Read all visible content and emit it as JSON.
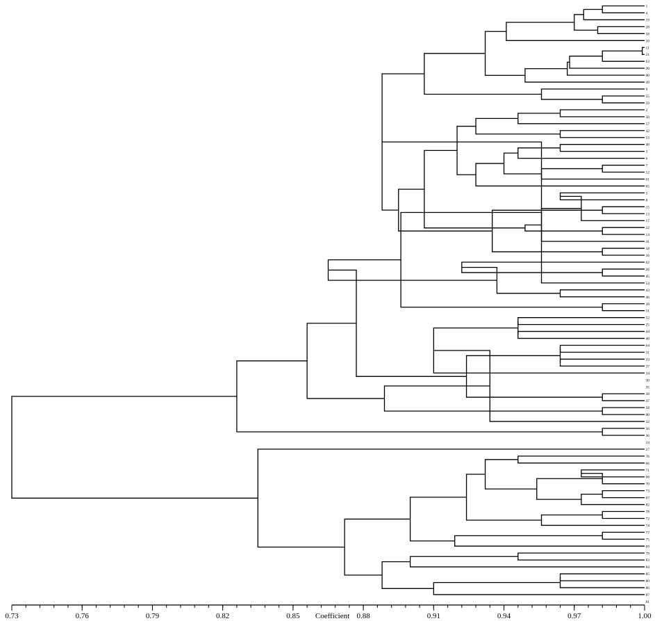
{
  "chart_data": {
    "type": "dendrogram",
    "orientation": "horizontal",
    "xlabel": "Coefficient",
    "xlim": [
      0.73,
      1.0
    ],
    "xticks": [
      "0.73",
      "0.76",
      "0.79",
      "0.82",
      "0.85",
      "0.88",
      "0.91",
      "0.94",
      "0.97",
      "1.00"
    ],
    "leaves": [
      "1",
      "4",
      "19",
      "28",
      "58",
      "10",
      "11",
      "21",
      "63",
      "20",
      "60",
      "49",
      "9",
      "55",
      "59",
      "2",
      "50",
      "57",
      "42",
      "53",
      "40",
      "3",
      "6",
      "7",
      "12",
      "61",
      "65",
      "5",
      "8",
      "15",
      "13",
      "17",
      "22",
      "14",
      "41",
      "18",
      "16",
      "62",
      "26",
      "45",
      "54",
      "43",
      "46",
      "39",
      "51",
      "52",
      "25",
      "44",
      "48",
      "64",
      "31",
      "33",
      "37",
      "34",
      "30",
      "35",
      "38",
      "47",
      "58",
      "60",
      "32",
      "56",
      "36",
      "24",
      "27",
      "76",
      "66",
      "71",
      "68",
      "70",
      "73",
      "67",
      "82",
      "78",
      "72",
      "74",
      "77",
      "75",
      "69",
      "79",
      "83",
      "84",
      "85",
      "80",
      "86",
      "87",
      "81"
    ],
    "merges": [
      [
        0,
        1,
        0.982
      ],
      [
        2,
        87,
        0.974
      ],
      [
        3,
        4,
        0.98
      ],
      [
        88,
        89,
        0.97
      ],
      [
        90,
        5,
        0.941
      ],
      [
        6,
        7,
        0.999
      ],
      [
        92,
        8,
        0.982
      ],
      [
        93,
        9,
        0.968
      ],
      [
        94,
        10,
        0.967
      ],
      [
        95,
        11,
        0.949
      ],
      [
        91,
        96,
        0.932
      ],
      [
        13,
        14,
        0.982
      ],
      [
        12,
        98,
        0.956
      ],
      [
        97,
        99,
        0.906
      ],
      [
        15,
        16,
        0.964
      ],
      [
        101,
        17,
        0.946
      ],
      [
        18,
        19,
        0.964
      ],
      [
        102,
        103,
        0.928
      ],
      [
        20,
        21,
        0.964
      ],
      [
        105,
        22,
        0.946
      ],
      [
        23,
        24,
        0.982
      ],
      [
        107,
        25,
        0.956
      ],
      [
        106,
        108,
        0.94
      ],
      [
        109,
        26,
        0.928
      ],
      [
        104,
        110,
        0.92
      ],
      [
        27,
        28,
        0.964
      ],
      [
        29,
        30,
        0.982
      ],
      [
        112,
        31,
        0.973
      ],
      [
        32,
        33,
        0.982
      ],
      [
        34,
        114,
        0.956
      ],
      [
        35,
        36,
        0.982
      ],
      [
        115,
        116,
        0.949
      ],
      [
        113,
        117,
        0.935
      ],
      [
        111,
        118,
        0.906
      ],
      [
        119,
        120,
        0.895
      ],
      [
        100,
        121,
        0.888
      ],
      [
        38,
        39,
        0.982
      ],
      [
        122,
        40,
        0.956
      ],
      [
        37,
        123,
        0.922
      ],
      [
        41,
        42,
        0.964
      ],
      [
        43,
        44,
        0.982
      ],
      [
        125,
        126,
        0.937
      ],
      [
        124,
        127,
        0.896
      ],
      [
        128,
        129,
        0.865
      ],
      [
        45,
        46,
        0.946
      ],
      [
        47,
        48,
        0.946
      ],
      [
        49,
        50,
        0.964
      ],
      [
        51,
        52,
        0.964
      ],
      [
        131,
        132,
        0.946
      ],
      [
        133,
        134,
        0.964
      ],
      [
        135,
        53,
        0.91
      ],
      [
        56,
        57,
        0.982
      ],
      [
        58,
        59,
        0.982
      ],
      [
        137,
        60,
        0.934
      ],
      [
        136,
        138,
        0.924
      ],
      [
        139,
        140,
        0.889
      ],
      [
        130,
        141,
        0.877
      ],
      [
        142,
        143,
        0.856
      ],
      [
        61,
        62,
        0.982
      ],
      [
        144,
        145,
        0.826
      ],
      [
        65,
        66,
        0.946
      ],
      [
        67,
        68,
        0.973
      ],
      [
        148,
        69,
        0.982
      ],
      [
        70,
        71,
        0.982
      ],
      [
        150,
        72,
        0.973
      ],
      [
        149,
        151,
        0.954
      ],
      [
        147,
        152,
        0.932
      ],
      [
        73,
        74,
        0.982
      ],
      [
        75,
        154,
        0.956
      ],
      [
        153,
        155,
        0.924
      ],
      [
        76,
        77,
        0.982
      ],
      [
        157,
        78,
        0.919
      ],
      [
        156,
        158,
        0.9
      ],
      [
        79,
        80,
        0.946
      ],
      [
        160,
        81,
        0.9
      ],
      [
        82,
        83,
        0.964
      ],
      [
        162,
        84,
        0.964
      ],
      [
        85,
        163,
        0.91
      ],
      [
        161,
        164,
        0.888
      ],
      [
        159,
        165,
        0.872
      ],
      [
        64,
        166,
        0.835
      ],
      [
        146,
        167,
        0.73
      ]
    ],
    "grid": false,
    "legend": "none"
  }
}
